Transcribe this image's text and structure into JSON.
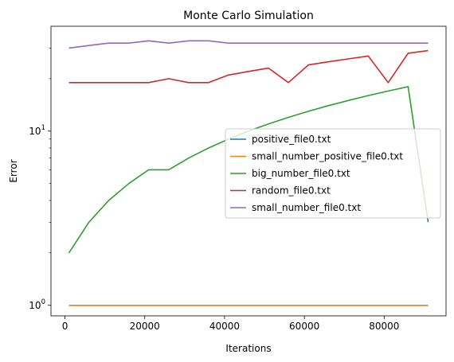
{
  "chart_data": {
    "type": "line",
    "title": "Monte Carlo Simulation",
    "xlabel": "Iterations",
    "ylabel": "Error",
    "yscale": "log",
    "xlim": [
      -3500,
      95500
    ],
    "ylim": [
      0.87,
      40
    ],
    "xticks": [
      {
        "value": 0,
        "label": "0"
      },
      {
        "value": 20000,
        "label": "20000"
      },
      {
        "value": 40000,
        "label": "40000"
      },
      {
        "value": 60000,
        "label": "60000"
      },
      {
        "value": 80000,
        "label": "80000"
      }
    ],
    "yticks_major": [
      {
        "value": 1,
        "base": "10",
        "exp": "0"
      },
      {
        "value": 10,
        "base": "10",
        "exp": "1"
      }
    ],
    "yticks_minor": [
      2,
      3,
      4,
      5,
      6,
      7,
      8,
      9,
      20,
      30
    ],
    "grid": false,
    "legend_position": "center-right",
    "x": [
      1000,
      6000,
      11000,
      16000,
      21000,
      26000,
      31000,
      36000,
      41000,
      46000,
      51000,
      56000,
      61000,
      66000,
      71000,
      76000,
      81000,
      86000,
      91000
    ],
    "series": [
      {
        "name": "positive_file0.txt",
        "color": "#1f77b4",
        "values": [
          1,
          1,
          1,
          1,
          1,
          1,
          1,
          1,
          1,
          1,
          1,
          1,
          1,
          1,
          1,
          1,
          1,
          1,
          1
        ]
      },
      {
        "name": "small_number_positive_file0.txt",
        "color": "#ff7f0e",
        "values": [
          1,
          1,
          1,
          1,
          1,
          1,
          1,
          1,
          1,
          1,
          1,
          1,
          1,
          1,
          1,
          1,
          1,
          1,
          1
        ]
      },
      {
        "name": "big_number_file0.txt",
        "color": "#2ca02c",
        "values": [
          2,
          3,
          4,
          5,
          6,
          6,
          7,
          8,
          9,
          10,
          11,
          12,
          13,
          14,
          15,
          16,
          17,
          18,
          3
        ]
      },
      {
        "name": "random_file0.txt",
        "color": "#d62728",
        "values": [
          19,
          19,
          19,
          19,
          19,
          20,
          19,
          19,
          21,
          22,
          23,
          19,
          24,
          25,
          26,
          27,
          19,
          28,
          29
        ]
      },
      {
        "name": "small_number_file0.txt",
        "color": "#9467bd",
        "values": [
          30,
          31,
          32,
          32,
          33,
          32,
          33,
          33,
          32,
          32,
          32,
          32,
          32,
          32,
          32,
          32,
          32,
          32,
          32
        ]
      }
    ]
  }
}
